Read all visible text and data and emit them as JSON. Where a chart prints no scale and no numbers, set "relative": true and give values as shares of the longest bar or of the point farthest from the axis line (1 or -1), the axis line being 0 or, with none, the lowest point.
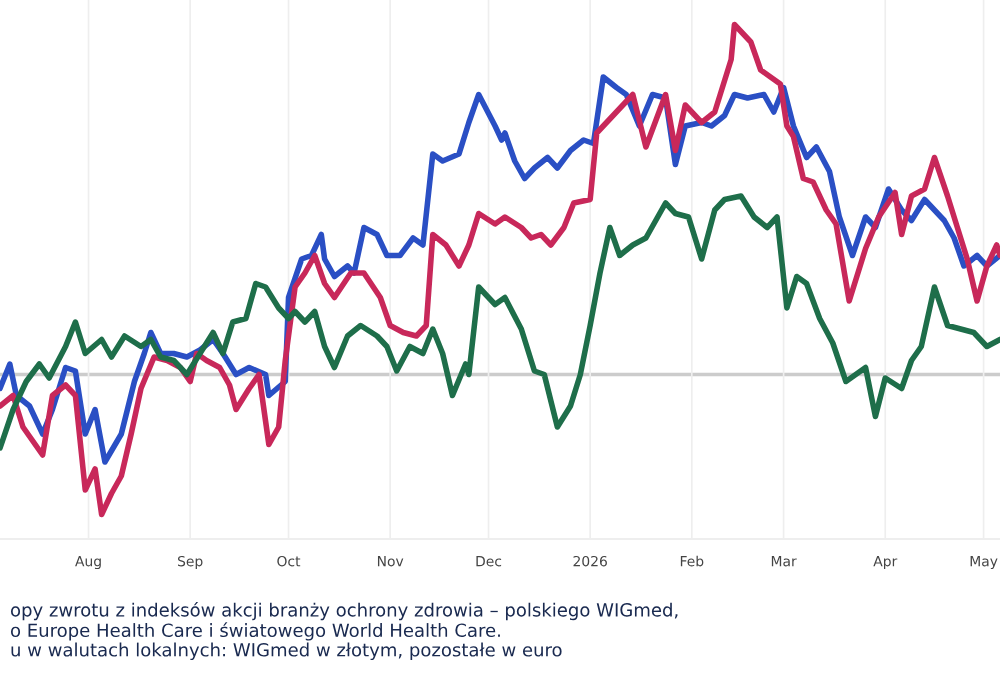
{
  "chart_data": {
    "type": "line",
    "relative": true,
    "grid": "x",
    "marker": "none",
    "line_style": "solid",
    "xlim": [
      "2025-07-05",
      "2026-05-06"
    ],
    "xticks": [
      {
        "value": "2025-08-01",
        "label": "Aug"
      },
      {
        "value": "2025-09-01",
        "label": "Sep"
      },
      {
        "value": "2025-10-01",
        "label": "Oct"
      },
      {
        "value": "2025-11-01",
        "label": "Nov"
      },
      {
        "value": "2025-12-01",
        "label": "Dec"
      },
      {
        "value": "2026-01-01",
        "label": "2026"
      },
      {
        "value": "2026-02-01",
        "label": "Feb"
      },
      {
        "value": "2026-03-01",
        "label": "Mar"
      },
      {
        "value": "2026-04-01",
        "label": "Apr"
      },
      {
        "value": "2026-05-01",
        "label": "May"
      }
    ],
    "annotations": [
      "opy zwrotu z indeksów akcji branży ochrony zdrowia – polskiego WIGmed,\no Europe Health Care i światowego World Health Care.\nu w walutach lokalnych: WIGmed w złotym, pozostałe w euro"
    ],
    "series": [
      {
        "color": "#2a4fc4",
        "x": [
          "2025-07-05",
          "2025-07-08",
          "2025-07-10",
          "2025-07-14",
          "2025-07-18",
          "2025-07-21",
          "2025-07-25",
          "2025-07-28",
          "2025-07-31",
          "2025-08-03",
          "2025-08-06",
          "2025-08-11",
          "2025-08-15",
          "2025-08-18",
          "2025-08-20",
          "2025-08-23",
          "2025-08-27",
          "2025-08-31",
          "2025-09-04",
          "2025-09-08",
          "2025-09-11",
          "2025-09-15",
          "2025-09-19",
          "2025-09-24",
          "2025-09-25",
          "2025-09-30",
          "2025-10-01",
          "2025-10-05",
          "2025-10-08",
          "2025-10-11",
          "2025-10-12",
          "2025-10-15",
          "2025-10-19",
          "2025-10-21",
          "2025-10-24",
          "2025-10-28",
          "2025-10-31",
          "2025-11-04",
          "2025-11-08",
          "2025-11-11",
          "2025-11-14",
          "2025-11-17",
          "2025-11-22",
          "2025-11-25",
          "2025-11-28",
          "2025-12-03",
          "2025-12-05",
          "2025-12-06",
          "2025-12-09",
          "2025-12-12",
          "2025-12-15",
          "2025-12-19",
          "2025-12-22",
          "2025-12-26",
          "2025-12-30",
          "2026-01-02",
          "2026-01-05",
          "2026-01-09",
          "2026-01-12",
          "2026-01-16",
          "2026-01-20",
          "2026-01-24",
          "2026-01-27",
          "2026-01-30",
          "2026-02-04",
          "2026-02-07",
          "2026-02-11",
          "2026-02-14",
          "2026-02-18",
          "2026-02-23",
          "2026-02-26",
          "2026-03-01",
          "2026-03-04",
          "2026-03-08",
          "2026-03-11",
          "2026-03-15",
          "2026-03-18",
          "2026-03-22",
          "2026-03-26",
          "2026-03-29",
          "2026-04-02",
          "2026-04-06",
          "2026-04-09",
          "2026-04-13",
          "2026-04-16",
          "2026-04-19",
          "2026-04-22",
          "2026-04-25",
          "2026-04-29",
          "2026-05-02",
          "2026-05-06"
        ],
        "values": [
          -0.04,
          0.03,
          -0.06,
          -0.09,
          -0.17,
          -0.1,
          0.02,
          0.01,
          -0.17,
          -0.1,
          -0.25,
          -0.17,
          -0.02,
          0.06,
          0.12,
          0.06,
          0.06,
          0.05,
          0.07,
          0.1,
          0.06,
          0.0,
          0.02,
          0.0,
          -0.06,
          -0.02,
          0.22,
          0.33,
          0.34,
          0.4,
          0.33,
          0.28,
          0.31,
          0.29,
          0.42,
          0.4,
          0.34,
          0.34,
          0.39,
          0.37,
          0.63,
          0.61,
          0.63,
          0.72,
          0.8,
          0.71,
          0.67,
          0.69,
          0.61,
          0.56,
          0.59,
          0.62,
          0.59,
          0.64,
          0.67,
          0.66,
          0.85,
          0.82,
          0.8,
          0.71,
          0.8,
          0.79,
          0.6,
          0.71,
          0.72,
          0.71,
          0.74,
          0.8,
          0.79,
          0.8,
          0.75,
          0.82,
          0.71,
          0.62,
          0.65,
          0.58,
          0.45,
          0.34,
          0.45,
          0.42,
          0.53,
          0.47,
          0.44,
          0.5,
          0.47,
          0.44,
          0.39,
          0.31,
          0.34,
          0.31,
          0.34
        ]
      },
      {
        "color": "#c8285a",
        "x": [
          "2025-07-05",
          "2025-07-09",
          "2025-07-12",
          "2025-07-18",
          "2025-07-21",
          "2025-07-25",
          "2025-07-28",
          "2025-07-31",
          "2025-08-03",
          "2025-08-05",
          "2025-08-08",
          "2025-08-11",
          "2025-08-14",
          "2025-08-17",
          "2025-08-21",
          "2025-08-25",
          "2025-08-29",
          "2025-09-01",
          "2025-09-03",
          "2025-09-06",
          "2025-09-10",
          "2025-09-13",
          "2025-09-15",
          "2025-09-19",
          "2025-09-22",
          "2025-09-25",
          "2025-09-28",
          "2025-09-30",
          "2025-10-03",
          "2025-10-06",
          "2025-10-09",
          "2025-10-12",
          "2025-10-15",
          "2025-10-20",
          "2025-10-24",
          "2025-10-29",
          "2025-11-01",
          "2025-11-05",
          "2025-11-09",
          "2025-11-12",
          "2025-11-14",
          "2025-11-18",
          "2025-11-22",
          "2025-11-25",
          "2025-11-28",
          "2025-12-03",
          "2025-12-06",
          "2025-12-11",
          "2025-12-14",
          "2025-12-17",
          "2025-12-20",
          "2025-12-24",
          "2025-12-27",
          "2026-01-01",
          "2026-01-03",
          "2026-01-08",
          "2026-01-11",
          "2026-01-14",
          "2026-01-18",
          "2026-01-24",
          "2026-01-27",
          "2026-01-30",
          "2026-02-04",
          "2026-02-08",
          "2026-02-13",
          "2026-02-14",
          "2026-02-19",
          "2026-02-22",
          "2026-02-25",
          "2026-02-28",
          "2026-03-02",
          "2026-03-04",
          "2026-03-07",
          "2026-03-10",
          "2026-03-14",
          "2026-03-17",
          "2026-03-21",
          "2026-03-26",
          "2026-03-30",
          "2026-04-04",
          "2026-04-06",
          "2026-04-09",
          "2026-04-13",
          "2026-04-16",
          "2026-04-20",
          "2026-04-23",
          "2026-04-26",
          "2026-04-29",
          "2026-05-02",
          "2026-05-05",
          "2026-05-06"
        ],
        "values": [
          -0.09,
          -0.06,
          -0.15,
          -0.23,
          -0.06,
          -0.03,
          -0.06,
          -0.33,
          -0.27,
          -0.4,
          -0.34,
          -0.29,
          -0.17,
          -0.04,
          0.05,
          0.04,
          0.02,
          -0.02,
          0.06,
          0.04,
          0.02,
          -0.03,
          -0.1,
          -0.04,
          0.0,
          -0.2,
          -0.15,
          0.04,
          0.25,
          0.29,
          0.34,
          0.26,
          0.22,
          0.29,
          0.29,
          0.22,
          0.14,
          0.12,
          0.11,
          0.14,
          0.4,
          0.37,
          0.31,
          0.37,
          0.46,
          0.43,
          0.45,
          0.42,
          0.39,
          0.4,
          0.37,
          0.42,
          0.49,
          0.5,
          0.69,
          0.74,
          0.77,
          0.8,
          0.65,
          0.8,
          0.64,
          0.77,
          0.72,
          0.75,
          0.9,
          1.0,
          0.95,
          0.87,
          0.85,
          0.83,
          0.71,
          0.68,
          0.56,
          0.55,
          0.47,
          0.43,
          0.21,
          0.36,
          0.45,
          0.52,
          0.4,
          0.51,
          0.53,
          0.62,
          0.51,
          0.42,
          0.33,
          0.21,
          0.31,
          0.37,
          0.34
        ]
      },
      {
        "color": "#1e6e4a",
        "x": [
          "2025-07-05",
          "2025-07-09",
          "2025-07-13",
          "2025-07-17",
          "2025-07-20",
          "2025-07-25",
          "2025-07-28",
          "2025-07-31",
          "2025-08-05",
          "2025-08-08",
          "2025-08-12",
          "2025-08-17",
          "2025-08-20",
          "2025-08-23",
          "2025-08-27",
          "2025-08-31",
          "2025-09-04",
          "2025-09-08",
          "2025-09-11",
          "2025-09-14",
          "2025-09-18",
          "2025-09-21",
          "2025-09-24",
          "2025-09-28",
          "2025-10-01",
          "2025-10-03",
          "2025-10-06",
          "2025-10-09",
          "2025-10-12",
          "2025-10-15",
          "2025-10-19",
          "2025-10-23",
          "2025-10-28",
          "2025-10-31",
          "2025-11-03",
          "2025-11-07",
          "2025-11-11",
          "2025-11-14",
          "2025-11-17",
          "2025-11-20",
          "2025-11-24",
          "2025-11-25",
          "2025-11-28",
          "2025-12-03",
          "2025-12-06",
          "2025-12-11",
          "2025-12-15",
          "2025-12-18",
          "2025-12-22",
          "2025-12-26",
          "2025-12-29",
          "2026-01-01",
          "2026-01-04",
          "2026-01-07",
          "2026-01-10",
          "2026-01-14",
          "2026-01-18",
          "2026-01-24",
          "2026-01-27",
          "2026-01-31",
          "2026-02-04",
          "2026-02-08",
          "2026-02-11",
          "2026-02-16",
          "2026-02-20",
          "2026-02-24",
          "2026-02-27",
          "2026-03-02",
          "2026-03-05",
          "2026-03-08",
          "2026-03-12",
          "2026-03-16",
          "2026-03-20",
          "2026-03-26",
          "2026-03-29",
          "2026-04-01",
          "2026-04-06",
          "2026-04-09",
          "2026-04-12",
          "2026-04-16",
          "2026-04-20",
          "2026-04-24",
          "2026-04-28",
          "2026-05-02",
          "2026-05-06"
        ],
        "values": [
          -0.21,
          -0.1,
          -0.02,
          0.03,
          -0.01,
          0.08,
          0.15,
          0.06,
          0.1,
          0.05,
          0.11,
          0.08,
          0.1,
          0.05,
          0.04,
          0.0,
          0.06,
          0.12,
          0.06,
          0.15,
          0.16,
          0.26,
          0.25,
          0.19,
          0.16,
          0.18,
          0.15,
          0.18,
          0.08,
          0.02,
          0.11,
          0.14,
          0.11,
          0.08,
          0.01,
          0.08,
          0.06,
          0.13,
          0.06,
          -0.06,
          0.03,
          0.0,
          0.25,
          0.2,
          0.22,
          0.13,
          0.01,
          0.0,
          -0.15,
          -0.09,
          0.0,
          0.14,
          0.29,
          0.42,
          0.34,
          0.37,
          0.39,
          0.49,
          0.46,
          0.45,
          0.33,
          0.47,
          0.5,
          0.51,
          0.45,
          0.42,
          0.45,
          0.19,
          0.28,
          0.26,
          0.16,
          0.09,
          -0.02,
          0.02,
          -0.12,
          -0.01,
          -0.04,
          0.04,
          0.08,
          0.25,
          0.14,
          0.13,
          0.12,
          0.08,
          0.1
        ]
      }
    ]
  }
}
